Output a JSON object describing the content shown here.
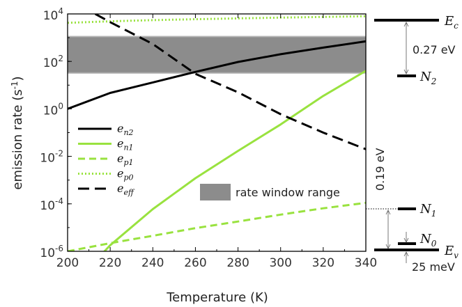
{
  "chart_data": {
    "type": "line",
    "xlabel": "Temperature (K)",
    "ylabel": "emission rate (s",
    "ylabel_sup": "-1",
    "ylabel_close": ")",
    "xlim": [
      200,
      340
    ],
    "ylim_log10": [
      -6,
      4
    ],
    "log_y": true,
    "x_ticks": [
      "200",
      "220",
      "240",
      "260",
      "280",
      "300",
      "320",
      "340"
    ],
    "y_ticks": [
      {
        "base": "10",
        "exp": "-6",
        "v": -6
      },
      {
        "base": "10",
        "exp": "-4",
        "v": -4
      },
      {
        "base": "10",
        "exp": "-2",
        "v": -2
      },
      {
        "base": "10",
        "exp": "0",
        "v": 0
      },
      {
        "base": "10",
        "exp": "2",
        "v": 2
      },
      {
        "base": "10",
        "exp": "4",
        "v": 4
      }
    ],
    "band": {
      "label": "rate window range",
      "y_range": [
        30,
        1200
      ],
      "color": "#8c8c8c"
    },
    "series": [
      {
        "name_base": "e",
        "name_sub": "n2",
        "color": "#000000",
        "style": "solid",
        "x": [
          200,
          220,
          240,
          260,
          280,
          300,
          320,
          340
        ],
        "y": [
          1.0,
          4.7,
          13,
          36,
          95,
          200,
          380,
          700
        ]
      },
      {
        "name_base": "e",
        "name_sub": "n1",
        "color": "#99e23f",
        "style": "solid",
        "x": [
          215,
          220,
          240,
          260,
          280,
          300,
          320,
          340
        ],
        "y": [
          6e-07,
          1.8e-06,
          6e-05,
          0.0012,
          0.017,
          0.22,
          3.5,
          40
        ]
      },
      {
        "name_base": "e",
        "name_sub": "p1",
        "color": "#99e23f",
        "style": "dashed",
        "x": [
          200,
          220,
          240,
          260,
          280,
          300,
          320,
          340
        ],
        "y": [
          1e-06,
          2.2e-06,
          4.5e-06,
          9.5e-06,
          1.8e-05,
          3.5e-05,
          6.5e-05,
          0.00011
        ]
      },
      {
        "name_base": "e",
        "name_sub": "p0",
        "color": "#99e23f",
        "style": "dotted",
        "x": [
          200,
          220,
          240,
          260,
          280,
          300,
          320,
          340
        ],
        "y": [
          4200,
          4900,
          5500,
          6000,
          6500,
          7000,
          7500,
          8000
        ]
      },
      {
        "name_base": "e",
        "name_sub": "eff",
        "color": "#000000",
        "style": "longdash",
        "x": [
          213,
          220,
          240,
          260,
          280,
          300,
          320,
          340
        ],
        "y": [
          10000,
          4500,
          540,
          30,
          5.0,
          0.6,
          0.1,
          0.02
        ]
      }
    ]
  },
  "levels": {
    "Ec": {
      "base": "E",
      "sub": "c"
    },
    "N2": {
      "base": "N",
      "sub": "2"
    },
    "N1": {
      "base": "N",
      "sub": "1"
    },
    "N0": {
      "base": "N",
      "sub": "0"
    },
    "Ev": {
      "base": "E",
      "sub": "v"
    },
    "gap_top": "0.27 eV",
    "gap_mid": "0.19 eV",
    "gap_bottom": "25 meV"
  }
}
